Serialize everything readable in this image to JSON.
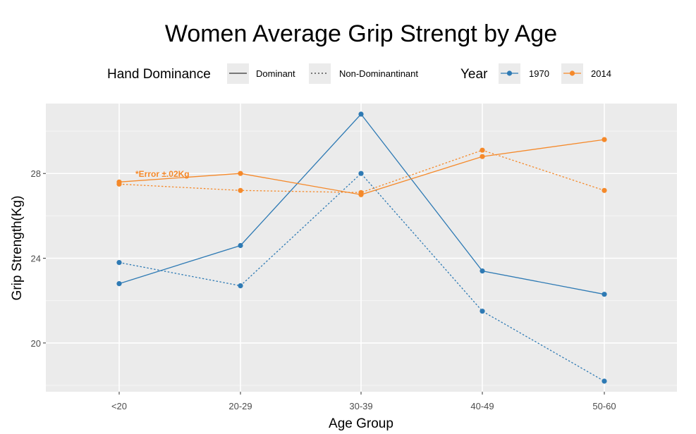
{
  "chart_data": {
    "type": "line",
    "title": "Women Average Grip Strengt by Age",
    "xlabel": "Age Group",
    "ylabel": "Grip Strength(Kg)",
    "categories": [
      "<20",
      "20-29",
      "30-39",
      "40-49",
      "50-60"
    ],
    "ylim": [
      17.7,
      31.3
    ],
    "yticks": [
      20,
      24,
      28
    ],
    "grid": true,
    "legend": {
      "position": "top",
      "groups": [
        {
          "title": "Hand Dominance",
          "entries": [
            {
              "label": "Dominant",
              "linetype": "solid"
            },
            {
              "label": "Non-Dominantinant",
              "linetype": "dotted"
            }
          ]
        },
        {
          "title": "Year",
          "entries": [
            {
              "label": "1970",
              "color": "#2e7ab4"
            },
            {
              "label": "2014",
              "color": "#f5892a"
            }
          ]
        }
      ]
    },
    "series": [
      {
        "year": "1970",
        "hand": "Dominant",
        "color": "#2e7ab4",
        "linetype": "solid",
        "values": [
          22.8,
          24.6,
          30.8,
          23.4,
          22.3
        ]
      },
      {
        "year": "1970",
        "hand": "Non-Dominantinant",
        "color": "#2e7ab4",
        "linetype": "dotted",
        "values": [
          23.8,
          22.7,
          28.0,
          21.5,
          18.2
        ]
      },
      {
        "year": "2014",
        "hand": "Dominant",
        "color": "#f5892a",
        "linetype": "solid",
        "values": [
          27.6,
          28.0,
          27.0,
          28.8,
          29.6
        ]
      },
      {
        "year": "2014",
        "hand": "Non-Dominantinant",
        "color": "#f5892a",
        "linetype": "dotted",
        "values": [
          27.5,
          27.2,
          27.1,
          29.1,
          27.2
        ]
      }
    ],
    "annotation": {
      "text": "*Error ±.02Kg",
      "color": "#f5892a"
    }
  }
}
